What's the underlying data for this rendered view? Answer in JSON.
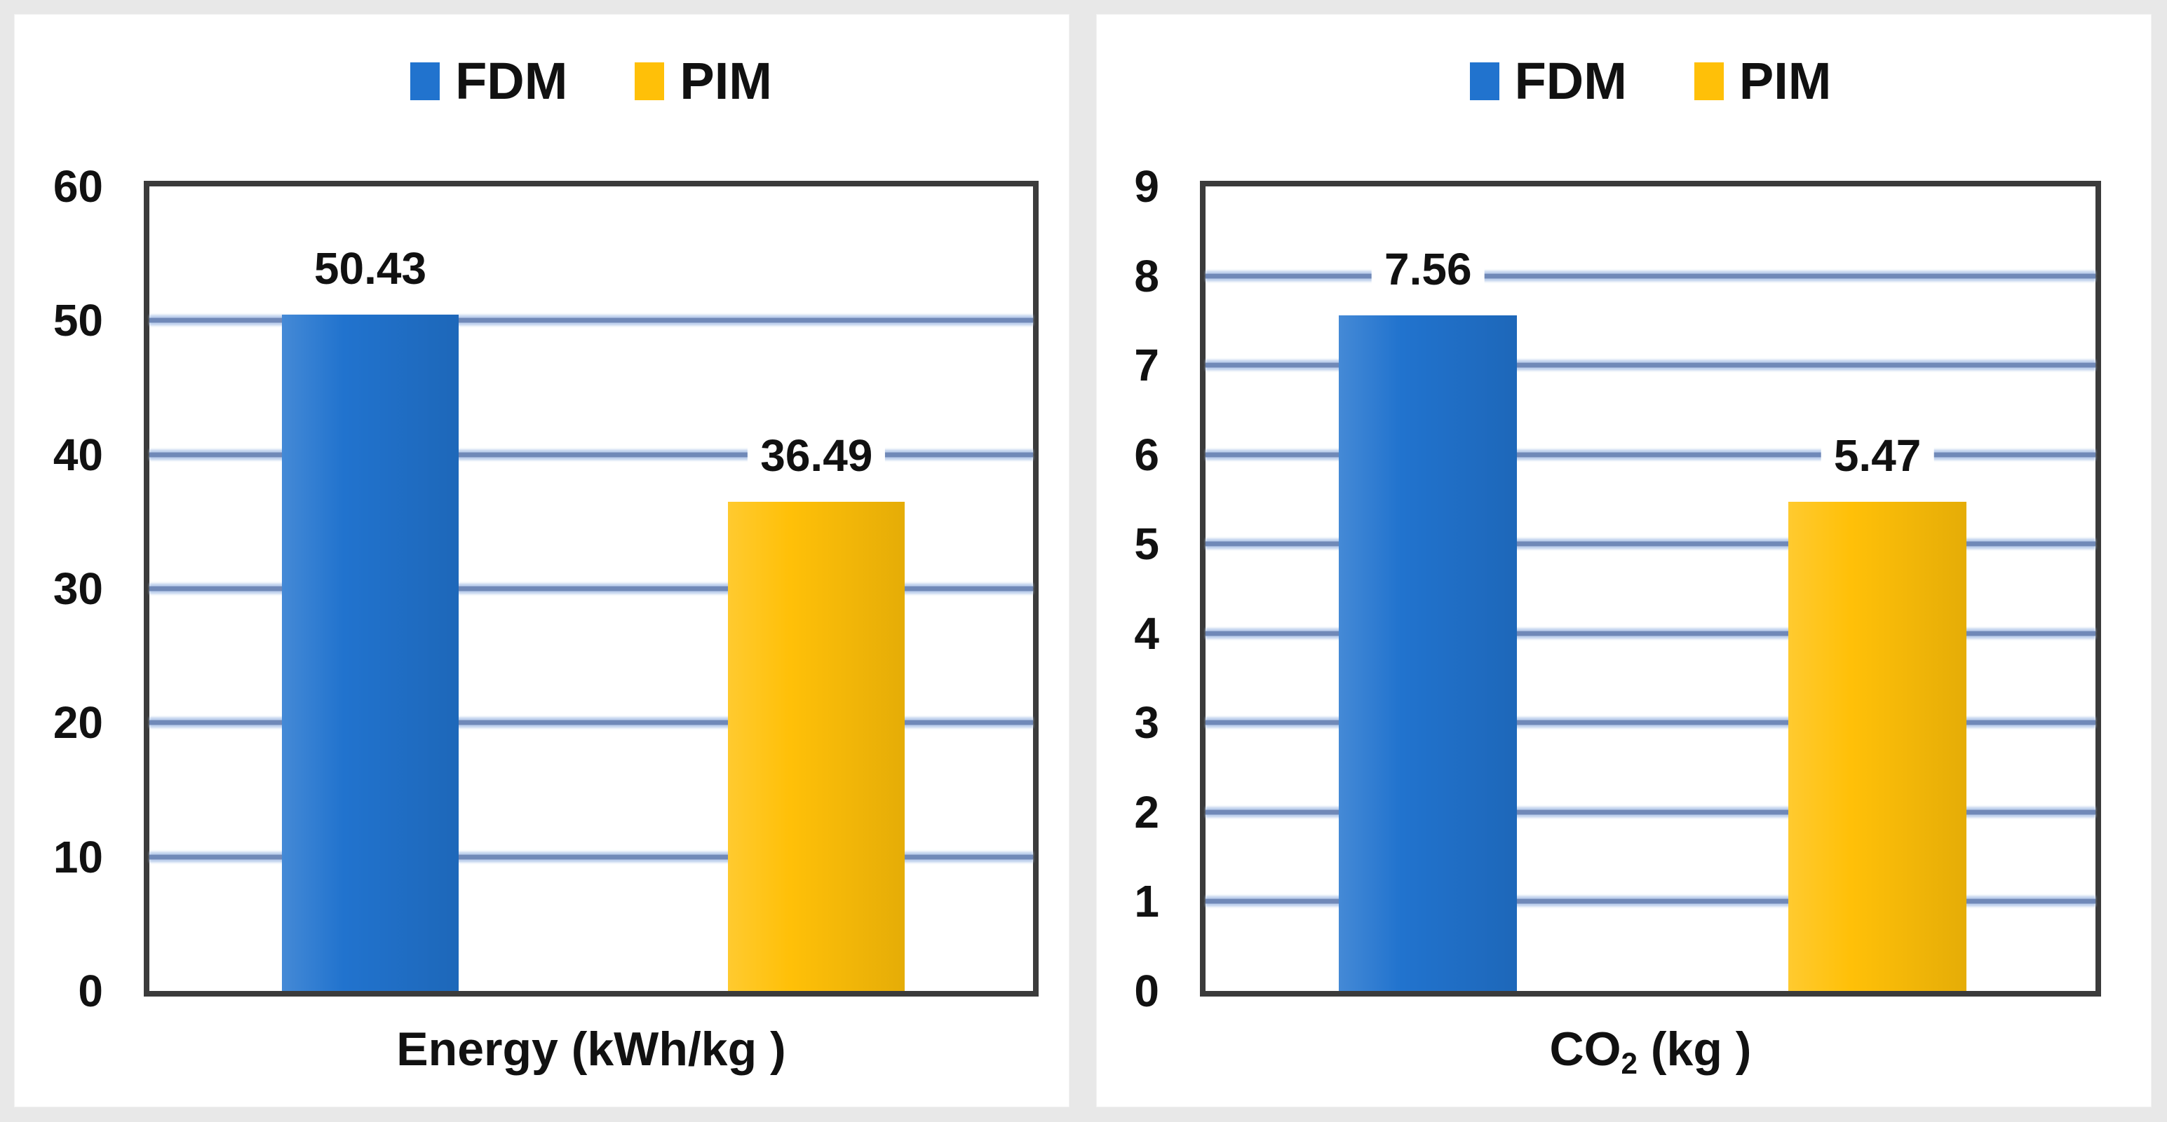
{
  "page": {
    "background": "#e8e8e8",
    "panel_background": "#ffffff"
  },
  "colors": {
    "fdm_blue": "#2173CE",
    "pim_yellow": "#FFC008",
    "gridline_blue": "#7089B8",
    "plot_border_gray": "#3B3B3B",
    "text_black": "#111111"
  },
  "chart_data": [
    {
      "type": "bar",
      "panel": "left",
      "title": "",
      "categories": [
        "FDM",
        "PIM"
      ],
      "values": [
        50.43,
        36.49
      ],
      "bar_labels": [
        "50.43",
        "36.49"
      ],
      "series_colors": [
        "#2173CE",
        "#FFC008"
      ],
      "legend": [
        {
          "label": "FDM",
          "color": "#2173CE"
        },
        {
          "label": "PIM",
          "color": "#FFC008"
        }
      ],
      "legend_position": "top-center",
      "xlabel": "Energy (kWh/kg )",
      "xlabel_parts": {
        "main": "Energy (kWh/kg )",
        "sub": "",
        "rest": ""
      },
      "ylabel": "",
      "ylim": [
        0,
        60
      ],
      "ytick_step": 10,
      "yticks": [
        "0",
        "10",
        "20",
        "30",
        "40",
        "50",
        "60"
      ],
      "grid": "horizontal"
    },
    {
      "type": "bar",
      "panel": "right",
      "title": "",
      "categories": [
        "FDM",
        "PIM"
      ],
      "values": [
        7.56,
        5.47
      ],
      "bar_labels": [
        "7.56",
        "5.47"
      ],
      "series_colors": [
        "#2173CE",
        "#FFC008"
      ],
      "legend": [
        {
          "label": "FDM",
          "color": "#2173CE"
        },
        {
          "label": "PIM",
          "color": "#FFC008"
        }
      ],
      "legend_position": "top-center",
      "xlabel": "CO2 (kg )",
      "xlabel_parts": {
        "main": "CO",
        "sub": "2",
        "rest": " (kg )"
      },
      "ylabel": "",
      "ylim": [
        0,
        9
      ],
      "ytick_step": 1,
      "yticks": [
        "0",
        "1",
        "2",
        "3",
        "4",
        "5",
        "6",
        "7",
        "8",
        "9"
      ],
      "grid": "horizontal"
    }
  ]
}
